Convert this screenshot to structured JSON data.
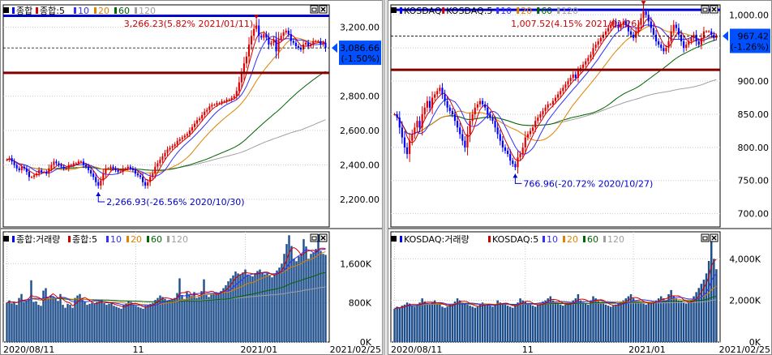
{
  "colors": {
    "up": "#e00000",
    "down": "#0000ff",
    "ma5": "#d00000",
    "ma10": "#3030ff",
    "ma20": "#e08000",
    "ma60": "#006400",
    "ma120": "#a0a0a0",
    "hline_blue": "#0000cc",
    "hline_red": "#800000",
    "vol_bar": "#1f4e8c",
    "grid": "#c8c8c8"
  },
  "icons": [
    "chart-menu-icon",
    "panel-restore-icon",
    "panel-close-icon",
    "price-marker-triangle-icon"
  ],
  "chart_data": [
    {
      "type": "candlestick",
      "id": "kospi-price",
      "legend": {
        "title": "종합",
        "items": [
          "종합:5",
          "10",
          "20",
          "60",
          "120"
        ]
      },
      "y_ticks": [
        "3,200.00",
        "2,800.00",
        "2,600.00",
        "2,400.00",
        "2,200.00"
      ],
      "tick_values": [
        3200,
        2800,
        2600,
        2400,
        2200
      ],
      "ylim": [
        2040,
        3330
      ],
      "current": {
        "value": "3,086.66",
        "change": "(-1.50%)"
      },
      "high_annotation": "3,266.23(5.82% 2021/01/11)",
      "low_annotation": "2,266.93(-26.56% 2020/10/30)",
      "hlines": [
        3266.23,
        2935
      ],
      "series_close": [
        2430,
        2440,
        2420,
        2400,
        2380,
        2370,
        2390,
        2380,
        2360,
        2330,
        2330,
        2340,
        2350,
        2370,
        2360,
        2360,
        2350,
        2380,
        2400,
        2420,
        2410,
        2400,
        2390,
        2380,
        2380,
        2400,
        2400,
        2410,
        2410,
        2420,
        2420,
        2400,
        2390,
        2370,
        2350,
        2330,
        2300,
        2280,
        2310,
        2350,
        2380,
        2380,
        2390,
        2380,
        2370,
        2360,
        2360,
        2380,
        2380,
        2390,
        2380,
        2370,
        2350,
        2340,
        2330,
        2300,
        2280,
        2300,
        2330,
        2350,
        2390,
        2410,
        2430,
        2450,
        2470,
        2490,
        2500,
        2510,
        2520,
        2540,
        2550,
        2560,
        2570,
        2580,
        2600,
        2620,
        2640,
        2660,
        2670,
        2690,
        2710,
        2720,
        2740,
        2750,
        2750,
        2760,
        2760,
        2770,
        2770,
        2780,
        2780,
        2790,
        2800,
        2830,
        2880,
        2930,
        2990,
        3030,
        3100,
        3150,
        3190,
        3210,
        3150,
        3140,
        3160,
        3140,
        3100,
        3110,
        3130,
        3060,
        3130,
        3150,
        3170,
        3180,
        3160,
        3120,
        3110,
        3090,
        3080,
        3070,
        3100,
        3110,
        3090,
        3100,
        3120,
        3120,
        3120,
        3100,
        3110,
        3080
      ],
      "x_dates": [
        "2020/08/11",
        "11",
        "2021/01",
        "2021/02/25"
      ]
    },
    {
      "type": "bar",
      "id": "kospi-volume",
      "legend": {
        "title": "종합:거래량",
        "items": [
          "종합:5",
          "10",
          "20",
          "60",
          "120"
        ]
      },
      "y_ticks": [
        "1,600K",
        "800K",
        "0K"
      ],
      "tick_values": [
        1600000,
        800000,
        0
      ],
      "ylim": [
        0,
        2250000
      ],
      "values": [
        800,
        850,
        790,
        820,
        760,
        900,
        980,
        820,
        850,
        880,
        1260,
        820,
        830,
        760,
        740,
        1050,
        1100,
        900,
        950,
        920,
        880,
        840,
        980,
        760,
        700,
        780,
        760,
        700,
        900,
        950,
        980,
        900,
        820,
        760,
        780,
        800,
        780,
        820,
        840,
        860,
        800,
        760,
        780,
        800,
        740,
        720,
        700,
        680,
        760,
        780,
        840,
        820,
        760,
        740,
        720,
        700,
        680,
        740,
        760,
        780,
        800,
        860,
        900,
        950,
        920,
        880,
        840,
        860,
        880,
        900,
        1000,
        1300,
        960,
        880,
        1020,
        980,
        940,
        1020,
        900,
        920,
        1040,
        1280,
        960,
        920,
        980,
        1000,
        1020,
        980,
        1040,
        1100,
        1160,
        1240,
        1300,
        1360,
        1440,
        1400,
        1380,
        1420,
        1480,
        1380,
        1360,
        1340,
        1400,
        1450,
        1480,
        1420,
        1380,
        1400,
        1360,
        1320,
        1380,
        1460,
        1520,
        1600,
        1800,
        2000,
        2180,
        1960,
        1700,
        1650,
        1750,
        1800,
        2100,
        1950,
        1700,
        1800,
        1820,
        1900,
        2200,
        1860,
        1800,
        1780
      ]
    },
    {
      "type": "candlestick",
      "id": "kosdaq-price",
      "legend": {
        "title": "KOSDAQ",
        "items": [
          "KOSDAQ:5",
          "10",
          "20",
          "60",
          "120"
        ]
      },
      "y_ticks": [
        "1,000.00",
        "950.00",
        "900.00",
        "850.00",
        "800.00",
        "750.00",
        "700.00"
      ],
      "tick_values": [
        1000,
        950,
        900,
        850,
        800,
        750,
        700
      ],
      "ylim": [
        680,
        1015
      ],
      "current": {
        "value": "967.42",
        "change": "(-1.26%)"
      },
      "high_annotation": "1,007.52(4.15% 2021/01/26)",
      "low_annotation": "766.96(-20.72% 2020/10/27)",
      "hlines": [
        1007.52,
        917
      ],
      "series_close": [
        850,
        845,
        830,
        815,
        800,
        790,
        810,
        820,
        830,
        840,
        830,
        850,
        860,
        870,
        860,
        875,
        880,
        885,
        890,
        880,
        870,
        860,
        855,
        850,
        840,
        830,
        820,
        810,
        800,
        820,
        840,
        850,
        860,
        865,
        870,
        865,
        860,
        850,
        845,
        840,
        830,
        820,
        810,
        800,
        795,
        790,
        780,
        775,
        770,
        785,
        790,
        800,
        815,
        820,
        825,
        830,
        840,
        845,
        850,
        855,
        860,
        865,
        865,
        870,
        875,
        880,
        885,
        890,
        895,
        900,
        905,
        910,
        905,
        915,
        920,
        925,
        930,
        935,
        940,
        950,
        955,
        960,
        965,
        970,
        975,
        980,
        985,
        990,
        985,
        980,
        985,
        990,
        985,
        975,
        970,
        965,
        975,
        985,
        995,
        1005,
        1000,
        990,
        980,
        970,
        960,
        955,
        950,
        945,
        950,
        960,
        975,
        985,
        980,
        970,
        960,
        950,
        955,
        960,
        965,
        970,
        960,
        955,
        965,
        975,
        975,
        975,
        970,
        965,
        968
      ]
    },
    {
      "type": "bar",
      "id": "kosdaq-volume",
      "legend": {
        "title": "KOSDAQ:거래량",
        "items": [
          "KOSDAQ:5",
          "10",
          "20",
          "60",
          "120"
        ]
      },
      "y_ticks": [
        "4,000K",
        "2,000K",
        "0K"
      ],
      "tick_values": [
        4000000,
        2000000,
        0
      ],
      "ylim": [
        0,
        5300000
      ],
      "values": [
        1600,
        1700,
        1650,
        1750,
        1800,
        1900,
        1850,
        1750,
        1700,
        1800,
        1900,
        2100,
        1950,
        1850,
        1800,
        1900,
        2000,
        1850,
        1800,
        1700,
        1650,
        1700,
        1800,
        1850,
        1950,
        2100,
        2000,
        1900,
        1850,
        1800,
        1750,
        1700,
        1650,
        1700,
        1800,
        1900,
        1850,
        1800,
        1750,
        1700,
        1800,
        2000,
        1900,
        1850,
        1800,
        1750,
        1700,
        1650,
        1800,
        1900,
        2100,
        2000,
        1950,
        1850,
        1800,
        1750,
        1700,
        1800,
        1900,
        1950,
        2000,
        2100,
        2200,
        2000,
        1900,
        1850,
        1800,
        1750,
        1800,
        1850,
        1900,
        2000,
        2100,
        2300,
        2000,
        1900,
        1850,
        1800,
        2000,
        2200,
        2100,
        2000,
        1900,
        1850,
        1800,
        1750,
        1700,
        1750,
        1800,
        1850,
        1900,
        2000,
        2100,
        2200,
        2300,
        2100,
        2000,
        1950,
        1900,
        1850,
        1800,
        1850,
        1900,
        1950,
        2000,
        2100,
        2200,
        2100,
        2000,
        2300,
        2500,
        2200,
        2100,
        2000,
        1950,
        1900,
        1850,
        1900,
        2000,
        2200,
        2400,
        2600,
        2800,
        3000,
        3300,
        3900,
        5200,
        4000,
        3500
      ]
    }
  ]
}
